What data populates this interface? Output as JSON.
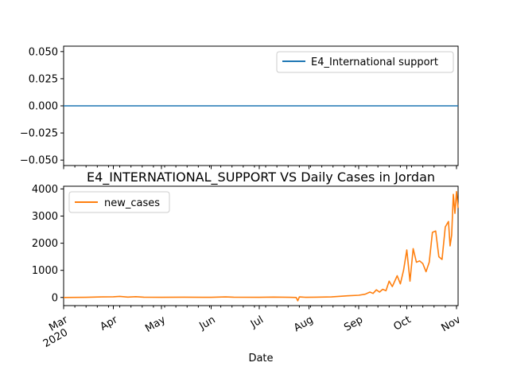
{
  "chart_data": [
    {
      "type": "line",
      "title": "",
      "xlabel": "",
      "ylabel": "",
      "ylim": [
        -0.055,
        0.055
      ],
      "yticks": [
        "0.050",
        "0.025",
        "0.000",
        "−0.025",
        "−0.050"
      ],
      "ytick_values": [
        0.05,
        0.025,
        0.0,
        -0.025,
        -0.05
      ],
      "legend_position": "upper right",
      "series": [
        {
          "name": "E4_International support",
          "color": "#1f77b4",
          "x": [
            "2020-03-01",
            "2020-11-02"
          ],
          "y": [
            0,
            0
          ]
        }
      ]
    },
    {
      "type": "line",
      "title": "E4_INTERNATIONAL_SUPPORT VS Daily Cases in Jordan",
      "xlabel": "Date",
      "ylabel": "",
      "ylim": [
        -300,
        4100
      ],
      "yticks": [
        "0",
        "1000",
        "2000",
        "3000",
        "4000"
      ],
      "ytick_values": [
        0,
        1000,
        2000,
        3000,
        4000
      ],
      "legend_position": "upper left",
      "xlim": [
        "2020-03-01",
        "2020-11-02"
      ],
      "xtick_labels": [
        {
          "date": "2020-03-01",
          "label": "Mar",
          "sublabel": "2020"
        },
        {
          "date": "2020-04-01",
          "label": "Apr"
        },
        {
          "date": "2020-05-01",
          "label": "May"
        },
        {
          "date": "2020-06-01",
          "label": "Jun"
        },
        {
          "date": "2020-07-01",
          "label": "Jul"
        },
        {
          "date": "2020-08-01",
          "label": "Aug"
        },
        {
          "date": "2020-09-01",
          "label": "Sep"
        },
        {
          "date": "2020-10-01",
          "label": "Oct"
        },
        {
          "date": "2020-11-01",
          "label": "Nov"
        }
      ],
      "series": [
        {
          "name": "new_cases",
          "color": "#ff7f0e",
          "points": [
            [
              "2020-03-01",
              0
            ],
            [
              "2020-03-15",
              5
            ],
            [
              "2020-03-25",
              20
            ],
            [
              "2020-04-01",
              25
            ],
            [
              "2020-04-05",
              40
            ],
            [
              "2020-04-10",
              15
            ],
            [
              "2020-04-15",
              30
            ],
            [
              "2020-04-20",
              10
            ],
            [
              "2020-05-01",
              5
            ],
            [
              "2020-05-15",
              10
            ],
            [
              "2020-06-01",
              5
            ],
            [
              "2020-06-10",
              20
            ],
            [
              "2020-06-15",
              10
            ],
            [
              "2020-07-01",
              5
            ],
            [
              "2020-07-10",
              15
            ],
            [
              "2020-07-20",
              5
            ],
            [
              "2020-07-24",
              0
            ],
            [
              "2020-07-25",
              -120
            ],
            [
              "2020-07-26",
              20
            ],
            [
              "2020-07-30",
              5
            ],
            [
              "2020-08-05",
              10
            ],
            [
              "2020-08-15",
              20
            ],
            [
              "2020-08-25",
              60
            ],
            [
              "2020-09-01",
              80
            ],
            [
              "2020-09-05",
              120
            ],
            [
              "2020-09-08",
              200
            ],
            [
              "2020-09-10",
              150
            ],
            [
              "2020-09-12",
              280
            ],
            [
              "2020-09-14",
              200
            ],
            [
              "2020-09-16",
              300
            ],
            [
              "2020-09-18",
              250
            ],
            [
              "2020-09-20",
              600
            ],
            [
              "2020-09-22",
              400
            ],
            [
              "2020-09-25",
              800
            ],
            [
              "2020-09-27",
              500
            ],
            [
              "2020-09-29",
              1000
            ],
            [
              "2020-10-01",
              1750
            ],
            [
              "2020-10-03",
              600
            ],
            [
              "2020-10-05",
              1800
            ],
            [
              "2020-10-07",
              1300
            ],
            [
              "2020-10-09",
              1350
            ],
            [
              "2020-10-11",
              1250
            ],
            [
              "2020-10-13",
              950
            ],
            [
              "2020-10-15",
              1300
            ],
            [
              "2020-10-17",
              2400
            ],
            [
              "2020-10-19",
              2450
            ],
            [
              "2020-10-21",
              1500
            ],
            [
              "2020-10-23",
              1400
            ],
            [
              "2020-10-25",
              2600
            ],
            [
              "2020-10-27",
              2800
            ],
            [
              "2020-10-28",
              1900
            ],
            [
              "2020-10-29",
              2300
            ],
            [
              "2020-10-30",
              3800
            ],
            [
              "2020-10-31",
              3100
            ],
            [
              "2020-11-01",
              3900
            ],
            [
              "2020-11-02",
              3300
            ]
          ]
        }
      ]
    }
  ]
}
